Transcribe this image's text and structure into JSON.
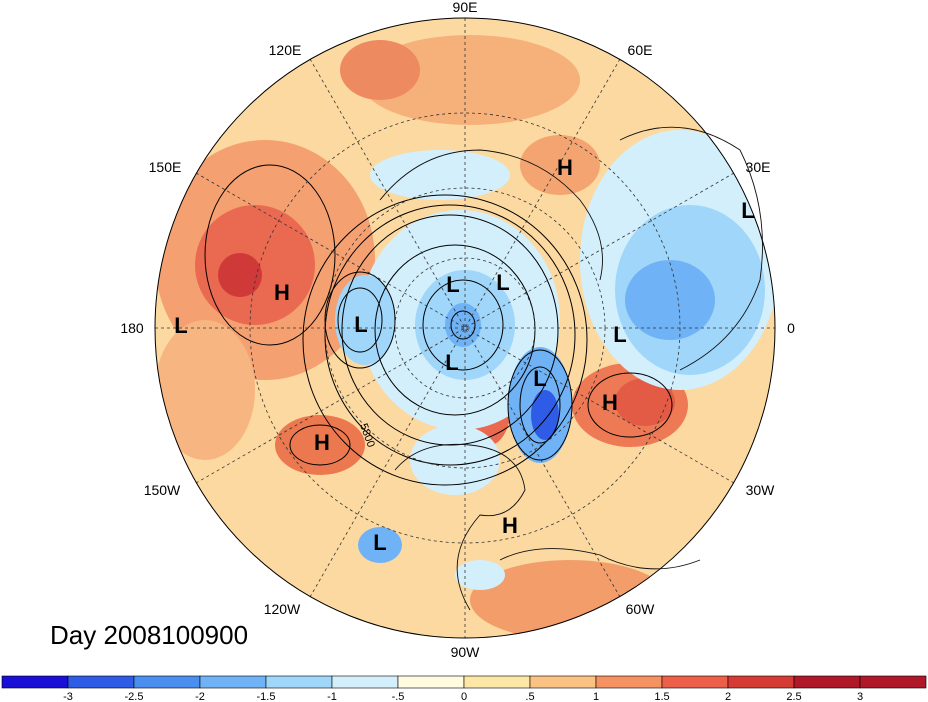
{
  "title": "Day 2008100900",
  "longitude_labels": [
    "90E",
    "60E",
    "30E",
    "0",
    "30W",
    "60W",
    "90W",
    "120W",
    "150W",
    "180",
    "150E",
    "120E"
  ],
  "contour_labels": [
    "5800"
  ],
  "pressure_centers": [
    {
      "type": "L",
      "label": "L"
    },
    {
      "type": "L",
      "label": "L"
    },
    {
      "type": "L",
      "label": "L"
    },
    {
      "type": "L",
      "label": "L"
    },
    {
      "type": "L",
      "label": "L"
    },
    {
      "type": "L",
      "label": "L"
    },
    {
      "type": "L",
      "label": "L"
    },
    {
      "type": "L",
      "label": "L"
    },
    {
      "type": "L",
      "label": "L"
    },
    {
      "type": "H",
      "label": "H"
    },
    {
      "type": "H",
      "label": "H"
    },
    {
      "type": "H",
      "label": "H"
    },
    {
      "type": "H",
      "label": "H"
    },
    {
      "type": "H",
      "label": "H"
    }
  ],
  "colorbar": {
    "colors": [
      "#1a0fd6",
      "#2f5ce6",
      "#4a8ff0",
      "#6fb3f6",
      "#9fd6fa",
      "#d3effc",
      "#fffbe0",
      "#fde7a6",
      "#fbc383",
      "#f59262",
      "#ec5f48",
      "#d63a35",
      "#b0182a"
    ],
    "ticks": [
      "-3",
      "-2.5",
      "-2",
      "-1.5",
      "-1",
      "-.5",
      "0",
      ".5",
      "1",
      "1.5",
      "2",
      "2.5",
      "3"
    ]
  }
}
